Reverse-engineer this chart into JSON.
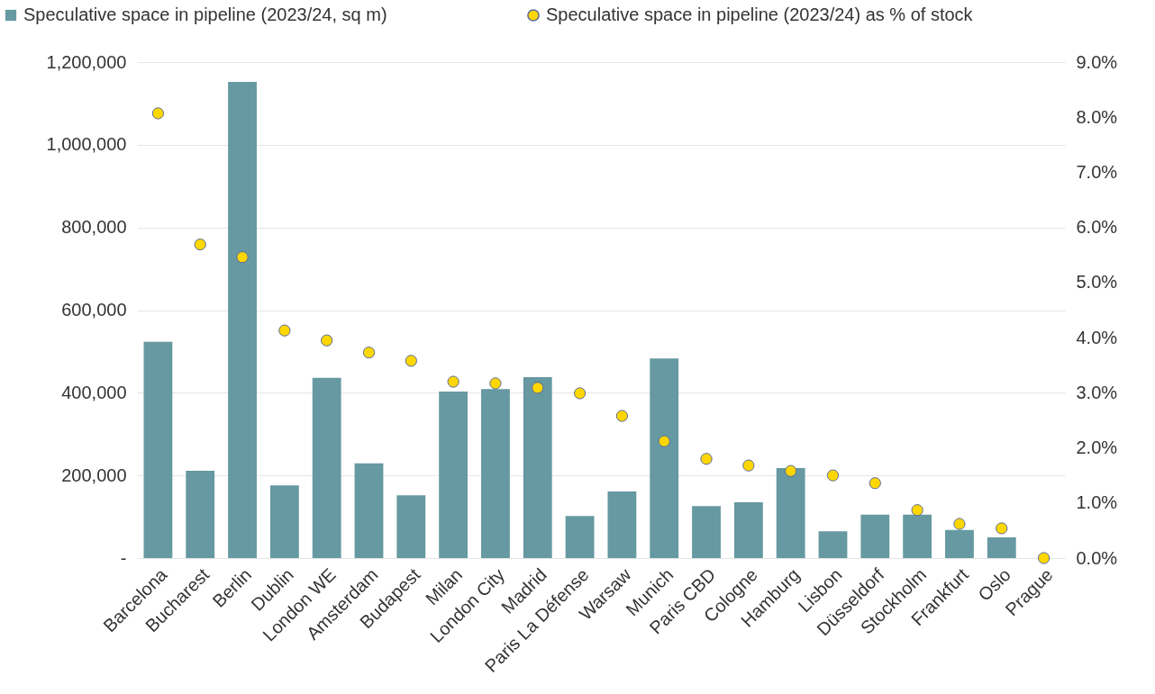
{
  "chart_data": {
    "type": "bar",
    "categories": [
      "Barcelona",
      "Bucharest",
      "Berlin",
      "Dublin",
      "London WE",
      "Amsterdam",
      "Budapest",
      "Milan",
      "London City",
      "Madrid",
      "Paris La Défense",
      "Warsaw",
      "Munich",
      "Paris CBD",
      "Cologne",
      "Hamburg",
      "Lisbon",
      "Düsseldorf",
      "Stockholm",
      "Frankfurt",
      "Oslo",
      "Prague"
    ],
    "series": [
      {
        "name": "Speculative space in pipeline (2023/24, sq m)",
        "color": "#6699a1",
        "values": [
          523000,
          211000,
          1152000,
          176000,
          436000,
          229000,
          152000,
          403000,
          409000,
          438000,
          102000,
          161000,
          483000,
          126000,
          135000,
          218000,
          65000,
          105000,
          105000,
          68000,
          50000,
          0
        ]
      },
      {
        "name": "Speculative space in pipeline (2023/24) as % of stock",
        "type": "scatter",
        "axis": "y2",
        "color": "#ffd700",
        "values": [
          8.07,
          5.69,
          5.46,
          4.13,
          3.95,
          3.73,
          3.58,
          3.2,
          3.17,
          3.09,
          2.99,
          2.58,
          2.12,
          1.8,
          1.68,
          1.58,
          1.5,
          1.36,
          0.87,
          0.62,
          0.54,
          0
        ]
      }
    ],
    "ylim": [
      0,
      1200000
    ],
    "yticks": [
      {
        "value": 0,
        "label": "-"
      },
      {
        "value": 200000,
        "label": "200,000"
      },
      {
        "value": 400000,
        "label": "400,000"
      },
      {
        "value": 600000,
        "label": "600,000"
      },
      {
        "value": 800000,
        "label": "800,000"
      },
      {
        "value": 1000000,
        "label": "1,000,000"
      },
      {
        "value": 1200000,
        "label": "1,200,000"
      }
    ],
    "y2lim": [
      0,
      9
    ],
    "y2ticks": [
      {
        "value": 0,
        "label": "0.0%"
      },
      {
        "value": 1,
        "label": "1.0%"
      },
      {
        "value": 2,
        "label": "2.0%"
      },
      {
        "value": 3,
        "label": "3.0%"
      },
      {
        "value": 4,
        "label": "4.0%"
      },
      {
        "value": 5,
        "label": "5.0%"
      },
      {
        "value": 6,
        "label": "6.0%"
      },
      {
        "value": 7,
        "label": "7.0%"
      },
      {
        "value": 8,
        "label": "8.0%"
      },
      {
        "value": 9,
        "label": "9.0%"
      }
    ],
    "grid": "y",
    "legend": "top",
    "marker": "circle"
  }
}
